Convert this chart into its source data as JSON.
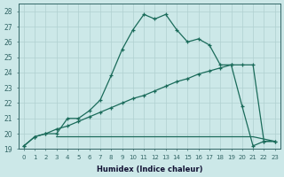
{
  "xlabel": "Humidex (Indice chaleur)",
  "background_color": "#cce8e8",
  "grid_color": "#b0d0d0",
  "line_color": "#1a6b5a",
  "ylim": [
    19,
    28.5
  ],
  "xlim": [
    -0.5,
    23.5
  ],
  "yticks": [
    19,
    20,
    21,
    22,
    23,
    24,
    25,
    26,
    27,
    28
  ],
  "xticks": [
    0,
    1,
    2,
    3,
    4,
    5,
    6,
    7,
    8,
    9,
    10,
    11,
    12,
    13,
    14,
    15,
    16,
    17,
    18,
    19,
    20,
    21,
    22,
    23
  ],
  "line1_x": [
    0,
    1,
    2,
    3,
    4,
    5,
    6,
    7,
    8,
    9,
    10,
    11,
    12,
    13,
    14,
    15,
    16,
    17,
    18,
    19,
    20,
    21,
    22,
    23
  ],
  "line1_y": [
    19.2,
    19.8,
    20.0,
    20.0,
    21.0,
    21.0,
    21.5,
    22.2,
    23.8,
    25.5,
    26.8,
    27.8,
    27.5,
    27.8,
    26.8,
    26.0,
    26.2,
    25.8,
    24.5,
    24.5,
    21.8,
    19.2,
    19.5,
    19.5
  ],
  "line2_x": [
    0,
    1,
    2,
    3,
    4,
    5,
    6,
    7,
    8,
    9,
    10,
    11,
    12,
    13,
    14,
    15,
    16,
    17,
    18,
    19,
    20,
    21,
    22,
    23
  ],
  "line2_y": [
    19.2,
    19.8,
    20.0,
    20.3,
    20.5,
    20.8,
    21.1,
    21.4,
    21.7,
    22.0,
    22.3,
    22.5,
    22.8,
    23.1,
    23.4,
    23.6,
    23.9,
    24.1,
    24.3,
    24.5,
    24.5,
    24.5,
    19.5,
    19.5
  ],
  "line3_x": [
    3,
    8,
    14,
    21,
    23
  ],
  "line3_y": [
    19.8,
    19.8,
    19.8,
    19.8,
    19.5
  ]
}
